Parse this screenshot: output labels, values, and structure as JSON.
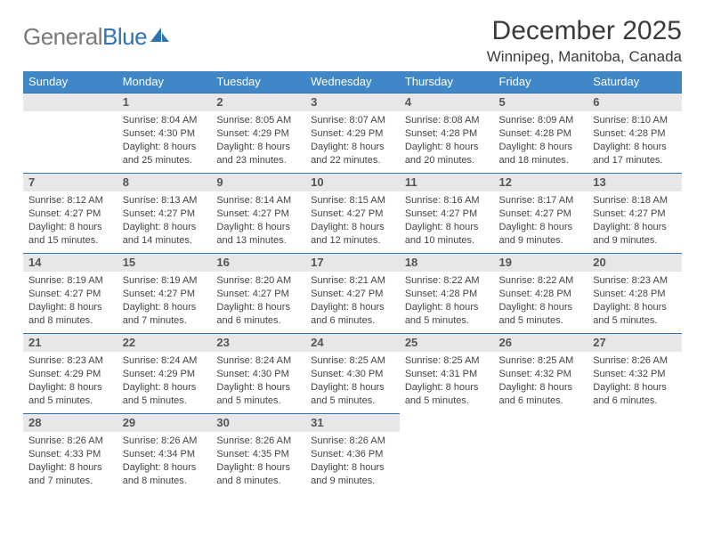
{
  "branding": {
    "logo_text_1": "General",
    "logo_text_2": "Blue",
    "logo_gray_color": "#7a7a7a",
    "logo_blue_color": "#2f74b5"
  },
  "header": {
    "title": "December 2025",
    "location": "Winnipeg, Manitoba, Canada"
  },
  "calendar": {
    "type": "table",
    "header_bg": "#3f87c7",
    "header_text_color": "#ffffff",
    "daynum_bg": "#e7e7e8",
    "daynum_border_color": "#2f74b5",
    "body_text_color": "#444444",
    "days_of_week": [
      "Sunday",
      "Monday",
      "Tuesday",
      "Wednesday",
      "Thursday",
      "Friday",
      "Saturday"
    ],
    "weeks": [
      [
        {
          "day": "",
          "sunrise": "",
          "sunset": "",
          "daylight": ""
        },
        {
          "day": "1",
          "sunrise": "Sunrise: 8:04 AM",
          "sunset": "Sunset: 4:30 PM",
          "daylight": "Daylight: 8 hours and 25 minutes."
        },
        {
          "day": "2",
          "sunrise": "Sunrise: 8:05 AM",
          "sunset": "Sunset: 4:29 PM",
          "daylight": "Daylight: 8 hours and 23 minutes."
        },
        {
          "day": "3",
          "sunrise": "Sunrise: 8:07 AM",
          "sunset": "Sunset: 4:29 PM",
          "daylight": "Daylight: 8 hours and 22 minutes."
        },
        {
          "day": "4",
          "sunrise": "Sunrise: 8:08 AM",
          "sunset": "Sunset: 4:28 PM",
          "daylight": "Daylight: 8 hours and 20 minutes."
        },
        {
          "day": "5",
          "sunrise": "Sunrise: 8:09 AM",
          "sunset": "Sunset: 4:28 PM",
          "daylight": "Daylight: 8 hours and 18 minutes."
        },
        {
          "day": "6",
          "sunrise": "Sunrise: 8:10 AM",
          "sunset": "Sunset: 4:28 PM",
          "daylight": "Daylight: 8 hours and 17 minutes."
        }
      ],
      [
        {
          "day": "7",
          "sunrise": "Sunrise: 8:12 AM",
          "sunset": "Sunset: 4:27 PM",
          "daylight": "Daylight: 8 hours and 15 minutes."
        },
        {
          "day": "8",
          "sunrise": "Sunrise: 8:13 AM",
          "sunset": "Sunset: 4:27 PM",
          "daylight": "Daylight: 8 hours and 14 minutes."
        },
        {
          "day": "9",
          "sunrise": "Sunrise: 8:14 AM",
          "sunset": "Sunset: 4:27 PM",
          "daylight": "Daylight: 8 hours and 13 minutes."
        },
        {
          "day": "10",
          "sunrise": "Sunrise: 8:15 AM",
          "sunset": "Sunset: 4:27 PM",
          "daylight": "Daylight: 8 hours and 12 minutes."
        },
        {
          "day": "11",
          "sunrise": "Sunrise: 8:16 AM",
          "sunset": "Sunset: 4:27 PM",
          "daylight": "Daylight: 8 hours and 10 minutes."
        },
        {
          "day": "12",
          "sunrise": "Sunrise: 8:17 AM",
          "sunset": "Sunset: 4:27 PM",
          "daylight": "Daylight: 8 hours and 9 minutes."
        },
        {
          "day": "13",
          "sunrise": "Sunrise: 8:18 AM",
          "sunset": "Sunset: 4:27 PM",
          "daylight": "Daylight: 8 hours and 9 minutes."
        }
      ],
      [
        {
          "day": "14",
          "sunrise": "Sunrise: 8:19 AM",
          "sunset": "Sunset: 4:27 PM",
          "daylight": "Daylight: 8 hours and 8 minutes."
        },
        {
          "day": "15",
          "sunrise": "Sunrise: 8:19 AM",
          "sunset": "Sunset: 4:27 PM",
          "daylight": "Daylight: 8 hours and 7 minutes."
        },
        {
          "day": "16",
          "sunrise": "Sunrise: 8:20 AM",
          "sunset": "Sunset: 4:27 PM",
          "daylight": "Daylight: 8 hours and 6 minutes."
        },
        {
          "day": "17",
          "sunrise": "Sunrise: 8:21 AM",
          "sunset": "Sunset: 4:27 PM",
          "daylight": "Daylight: 8 hours and 6 minutes."
        },
        {
          "day": "18",
          "sunrise": "Sunrise: 8:22 AM",
          "sunset": "Sunset: 4:28 PM",
          "daylight": "Daylight: 8 hours and 5 minutes."
        },
        {
          "day": "19",
          "sunrise": "Sunrise: 8:22 AM",
          "sunset": "Sunset: 4:28 PM",
          "daylight": "Daylight: 8 hours and 5 minutes."
        },
        {
          "day": "20",
          "sunrise": "Sunrise: 8:23 AM",
          "sunset": "Sunset: 4:28 PM",
          "daylight": "Daylight: 8 hours and 5 minutes."
        }
      ],
      [
        {
          "day": "21",
          "sunrise": "Sunrise: 8:23 AM",
          "sunset": "Sunset: 4:29 PM",
          "daylight": "Daylight: 8 hours and 5 minutes."
        },
        {
          "day": "22",
          "sunrise": "Sunrise: 8:24 AM",
          "sunset": "Sunset: 4:29 PM",
          "daylight": "Daylight: 8 hours and 5 minutes."
        },
        {
          "day": "23",
          "sunrise": "Sunrise: 8:24 AM",
          "sunset": "Sunset: 4:30 PM",
          "daylight": "Daylight: 8 hours and 5 minutes."
        },
        {
          "day": "24",
          "sunrise": "Sunrise: 8:25 AM",
          "sunset": "Sunset: 4:30 PM",
          "daylight": "Daylight: 8 hours and 5 minutes."
        },
        {
          "day": "25",
          "sunrise": "Sunrise: 8:25 AM",
          "sunset": "Sunset: 4:31 PM",
          "daylight": "Daylight: 8 hours and 5 minutes."
        },
        {
          "day": "26",
          "sunrise": "Sunrise: 8:25 AM",
          "sunset": "Sunset: 4:32 PM",
          "daylight": "Daylight: 8 hours and 6 minutes."
        },
        {
          "day": "27",
          "sunrise": "Sunrise: 8:26 AM",
          "sunset": "Sunset: 4:32 PM",
          "daylight": "Daylight: 8 hours and 6 minutes."
        }
      ],
      [
        {
          "day": "28",
          "sunrise": "Sunrise: 8:26 AM",
          "sunset": "Sunset: 4:33 PM",
          "daylight": "Daylight: 8 hours and 7 minutes."
        },
        {
          "day": "29",
          "sunrise": "Sunrise: 8:26 AM",
          "sunset": "Sunset: 4:34 PM",
          "daylight": "Daylight: 8 hours and 8 minutes."
        },
        {
          "day": "30",
          "sunrise": "Sunrise: 8:26 AM",
          "sunset": "Sunset: 4:35 PM",
          "daylight": "Daylight: 8 hours and 8 minutes."
        },
        {
          "day": "31",
          "sunrise": "Sunrise: 8:26 AM",
          "sunset": "Sunset: 4:36 PM",
          "daylight": "Daylight: 8 hours and 9 minutes."
        },
        {
          "day": "",
          "sunrise": "",
          "sunset": "",
          "daylight": ""
        },
        {
          "day": "",
          "sunrise": "",
          "sunset": "",
          "daylight": ""
        },
        {
          "day": "",
          "sunrise": "",
          "sunset": "",
          "daylight": ""
        }
      ]
    ]
  }
}
